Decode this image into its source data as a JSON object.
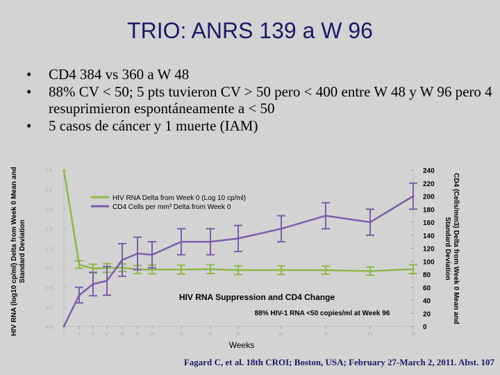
{
  "slide": {
    "title": "TRIO: ANRS 139 a W 96",
    "bullets": [
      "CD4 384 vs 360 a W 48",
      "88% CV < 50; 5 pts tuvieron CV > 50 pero < 400 entre W 48 y W 96 pero 4 resuprimieron espontáneamente a < 50",
      "5 casos de cáncer y 1 muerte (IAM)"
    ],
    "bullet_glyph": "•",
    "citation": "Fagard C, et al. 18th CROI; Boston, USA; February 27-March 2, 2011. Abst. 107"
  },
  "chart_data": {
    "type": "line",
    "xlabel": "Weeks",
    "ylabel_left": "HIV RNA (log10 cp/ml) Delta from Week 0 Mean and Standard Deviation",
    "ylabel_right": "CD4 (Cells/mm3) Delta from Week 0 Mean and Standard Deviation",
    "annotation_main": "HIV RNA Suppression and CD4 Change",
    "annotation_sub": "88% HIV-1 RNA <50 copies/ml at Week 96",
    "legend": [
      {
        "label": "HIV RNA Delta from Week 0 (Log 10 cp/ml)",
        "color": "#8cb84a"
      },
      {
        "label": "CD4 Cells per mm³ Delta from Week 0",
        "color": "#7b5ea7"
      }
    ],
    "legend_position": "top-left",
    "x": [
      0,
      4,
      8,
      12,
      16,
      20,
      24,
      32,
      40,
      48,
      60,
      72,
      84,
      96
    ],
    "x_tick_labels": [
      "0",
      "4",
      "8",
      "12",
      "16",
      "20",
      "24",
      "32",
      "40",
      "48",
      "60",
      "72",
      "84",
      "96"
    ],
    "right_axis": {
      "ylim": [
        0,
        240
      ],
      "ticks": [
        0,
        20,
        40,
        60,
        80,
        100,
        120,
        140,
        160,
        180,
        200,
        220,
        240
      ]
    },
    "left_axis": {
      "ylim": [
        -4.5,
        0.5
      ],
      "ticks": [
        "0.5",
        "0.0",
        "-0.5",
        "-1.5",
        "-2.5",
        "-3.0",
        "-3.5",
        "-4.0",
        "-4.5"
      ]
    },
    "series": [
      {
        "name": "HIV RNA Delta from Week 0 (Log 10 cp/ml)",
        "axis": "left",
        "color": "#8cb84a",
        "values": [
          0.5,
          -2.52,
          -2.65,
          -2.63,
          -2.62,
          -2.68,
          -2.68,
          -2.68,
          -2.67,
          -2.7,
          -2.7,
          -2.7,
          -2.73,
          -2.67
        ],
        "err": [
          0,
          0.12,
          0.14,
          0.14,
          0.12,
          0.13,
          0.14,
          0.14,
          0.14,
          0.14,
          0.14,
          0.13,
          0.13,
          0.14
        ]
      },
      {
        "name": "CD4 Cells per mm³ Delta from Week 0",
        "axis": "right",
        "color": "#7b5ea7",
        "values": [
          0,
          48,
          65,
          70,
          102,
          112,
          110,
          130,
          130,
          135,
          150,
          170,
          160,
          200
        ],
        "err": [
          0,
          12,
          18,
          22,
          25,
          25,
          20,
          20,
          20,
          20,
          20,
          20,
          20,
          20
        ]
      }
    ]
  }
}
